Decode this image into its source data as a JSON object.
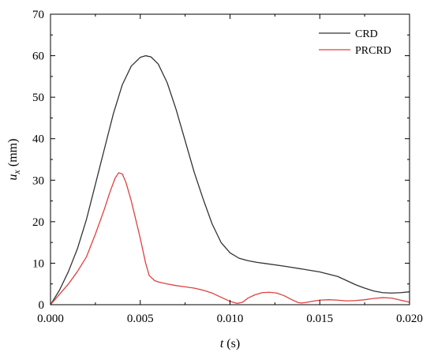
{
  "chart_data": {
    "type": "line",
    "title": "",
    "xlabel": {
      "symbol": "t",
      "unit": " (s)"
    },
    "ylabel": {
      "symbol": "u",
      "subscript": "x",
      "unit": " (mm)"
    },
    "xlim": [
      0,
      0.02
    ],
    "ylim": [
      0,
      70
    ],
    "grid": false,
    "legend_position": "top-right",
    "x_ticks": [
      {
        "value": 0,
        "label": "0.000"
      },
      {
        "value": 0.005,
        "label": "0.005"
      },
      {
        "value": 0.01,
        "label": "0.010"
      },
      {
        "value": 0.015,
        "label": "0.015"
      },
      {
        "value": 0.02,
        "label": "0.020"
      }
    ],
    "y_ticks": [
      {
        "value": 0,
        "label": "0"
      },
      {
        "value": 10,
        "label": "10"
      },
      {
        "value": 20,
        "label": "20"
      },
      {
        "value": 30,
        "label": "30"
      },
      {
        "value": 40,
        "label": "40"
      },
      {
        "value": 50,
        "label": "50"
      },
      {
        "value": 60,
        "label": "60"
      },
      {
        "value": 70,
        "label": "70"
      }
    ],
    "series": [
      {
        "name": "CRD",
        "color": "#333333",
        "x": [
          0,
          0.0005,
          0.001,
          0.0015,
          0.002,
          0.0025,
          0.003,
          0.0035,
          0.004,
          0.0045,
          0.005,
          0.0053,
          0.0056,
          0.006,
          0.0065,
          0.007,
          0.0075,
          0.008,
          0.0085,
          0.009,
          0.0095,
          0.01,
          0.0105,
          0.011,
          0.0115,
          0.012,
          0.013,
          0.014,
          0.015,
          0.016,
          0.0165,
          0.017,
          0.0175,
          0.018,
          0.0185,
          0.019,
          0.0195,
          0.02
        ],
        "y": [
          0,
          3.5,
          8,
          13.5,
          20.5,
          29,
          37.5,
          46,
          53,
          57.5,
          59.6,
          60,
          59.7,
          58,
          53.5,
          47,
          39.5,
          32,
          25.5,
          19.5,
          15,
          12.5,
          11.2,
          10.6,
          10.2,
          9.9,
          9.3,
          8.6,
          7.9,
          6.8,
          5.8,
          4.8,
          4,
          3.3,
          2.9,
          2.8,
          2.9,
          3.1
        ]
      },
      {
        "name": "PRCRD",
        "color": "#e04040",
        "x": [
          0,
          0.0005,
          0.001,
          0.0015,
          0.002,
          0.0025,
          0.003,
          0.0033,
          0.0036,
          0.0038,
          0.004,
          0.0042,
          0.0045,
          0.005,
          0.0053,
          0.0055,
          0.0058,
          0.006,
          0.0065,
          0.007,
          0.0075,
          0.008,
          0.0085,
          0.009,
          0.0095,
          0.01,
          0.0104,
          0.0107,
          0.011,
          0.0114,
          0.0118,
          0.0122,
          0.0126,
          0.013,
          0.0134,
          0.0138,
          0.014,
          0.0143,
          0.0147,
          0.015,
          0.0155,
          0.016,
          0.0165,
          0.017,
          0.0175,
          0.018,
          0.0185,
          0.019,
          0.0195,
          0.02
        ],
        "y": [
          0,
          2.5,
          5,
          8,
          11.5,
          17,
          23,
          27,
          30.5,
          31.8,
          31.5,
          29.5,
          25,
          16,
          10,
          7,
          5.8,
          5.5,
          5,
          4.6,
          4.3,
          4,
          3.5,
          2.8,
          1.8,
          0.8,
          0.3,
          0.6,
          1.6,
          2.4,
          2.9,
          3,
          2.8,
          2.2,
          1.3,
          0.5,
          0.4,
          0.6,
          0.9,
          1.1,
          1.2,
          1.1,
          0.9,
          1,
          1.2,
          1.5,
          1.7,
          1.6,
          1.1,
          0.6
        ]
      }
    ]
  }
}
